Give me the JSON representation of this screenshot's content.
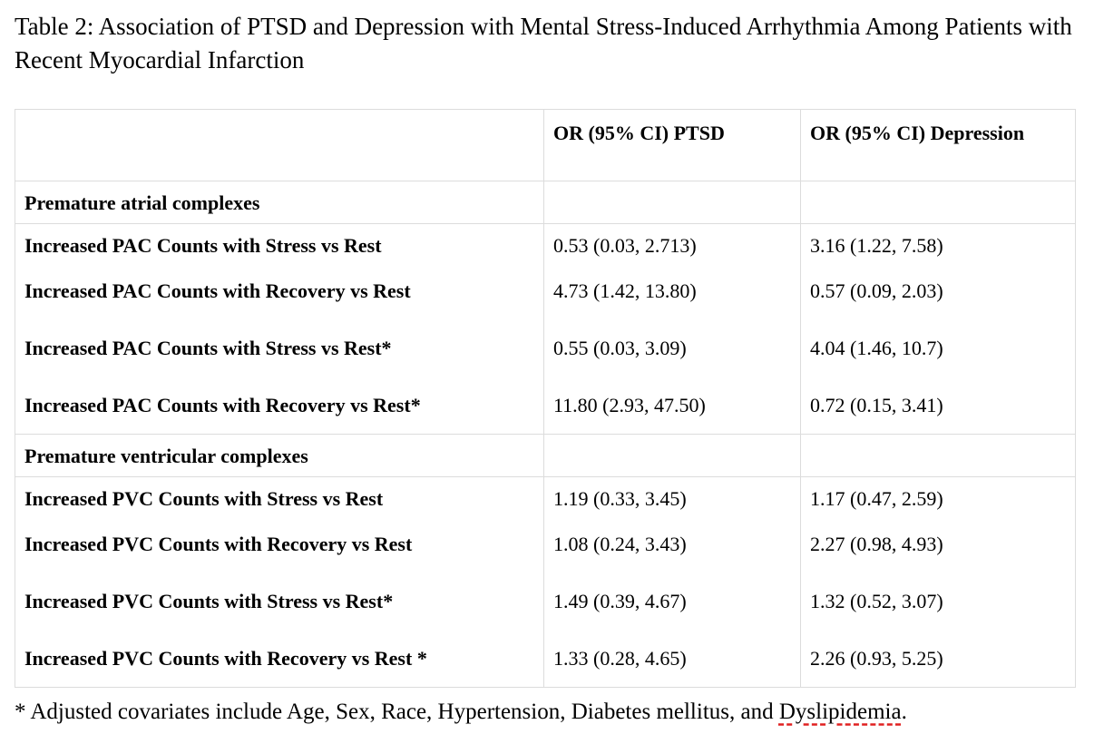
{
  "caption": "Table 2: Association of PTSD and Depression with Mental Stress-Induced Arrhythmia Among Patients with Recent Myocardial Infarction",
  "table": {
    "headers": [
      "",
      "OR (95% CI) PTSD",
      "OR (95% CI) Depression"
    ],
    "sections": [
      {
        "title": "Premature atrial complexes",
        "rows": [
          {
            "label": "Increased PAC Counts with Stress vs Rest",
            "ptsd": "0.53 (0.03, 2.713)",
            "depression": "3.16 (1.22, 7.58)"
          },
          {
            "label": "Increased PAC Counts with Recovery vs Rest",
            "ptsd": "4.73 (1.42, 13.80)",
            "depression": "0.57 (0.09, 2.03)"
          },
          {
            "label": "Increased PAC Counts with Stress vs Rest*",
            "ptsd": "0.55 (0.03, 3.09)",
            "depression": "4.04 (1.46, 10.7)"
          },
          {
            "label": "Increased PAC Counts with Recovery vs Rest*",
            "ptsd": "11.80 (2.93, 47.50)",
            "depression": "0.72 (0.15, 3.41)"
          }
        ]
      },
      {
        "title": "Premature ventricular complexes",
        "rows": [
          {
            "label": "Increased PVC Counts with Stress vs Rest",
            "ptsd": "1.19 (0.33, 3.45)",
            "depression": "1.17 (0.47, 2.59)"
          },
          {
            "label": "Increased PVC Counts with Recovery vs Rest",
            "ptsd": "1.08 (0.24, 3.43)",
            "depression": "2.27 (0.98, 4.93)"
          },
          {
            "label": "Increased PVC Counts with Stress vs Rest*",
            "ptsd": "1.49 (0.39, 4.67)",
            "depression": "1.32 (0.52, 3.07)"
          },
          {
            "label": "Increased PVC Counts with Recovery vs Rest *",
            "ptsd": "1.33 (0.28, 4.65)",
            "depression": "2.26 (0.93, 5.25)"
          }
        ]
      }
    ]
  },
  "footnote": {
    "text": "* Adjusted covariates include Age, Sex, Race, Hypertension, Diabetes mellitus, and ",
    "flagged_word": "Dyslipidemia",
    "end": "."
  },
  "colors": {
    "text": "#000000",
    "border": "#dcdcdc",
    "spellcheck": "#e02020"
  }
}
